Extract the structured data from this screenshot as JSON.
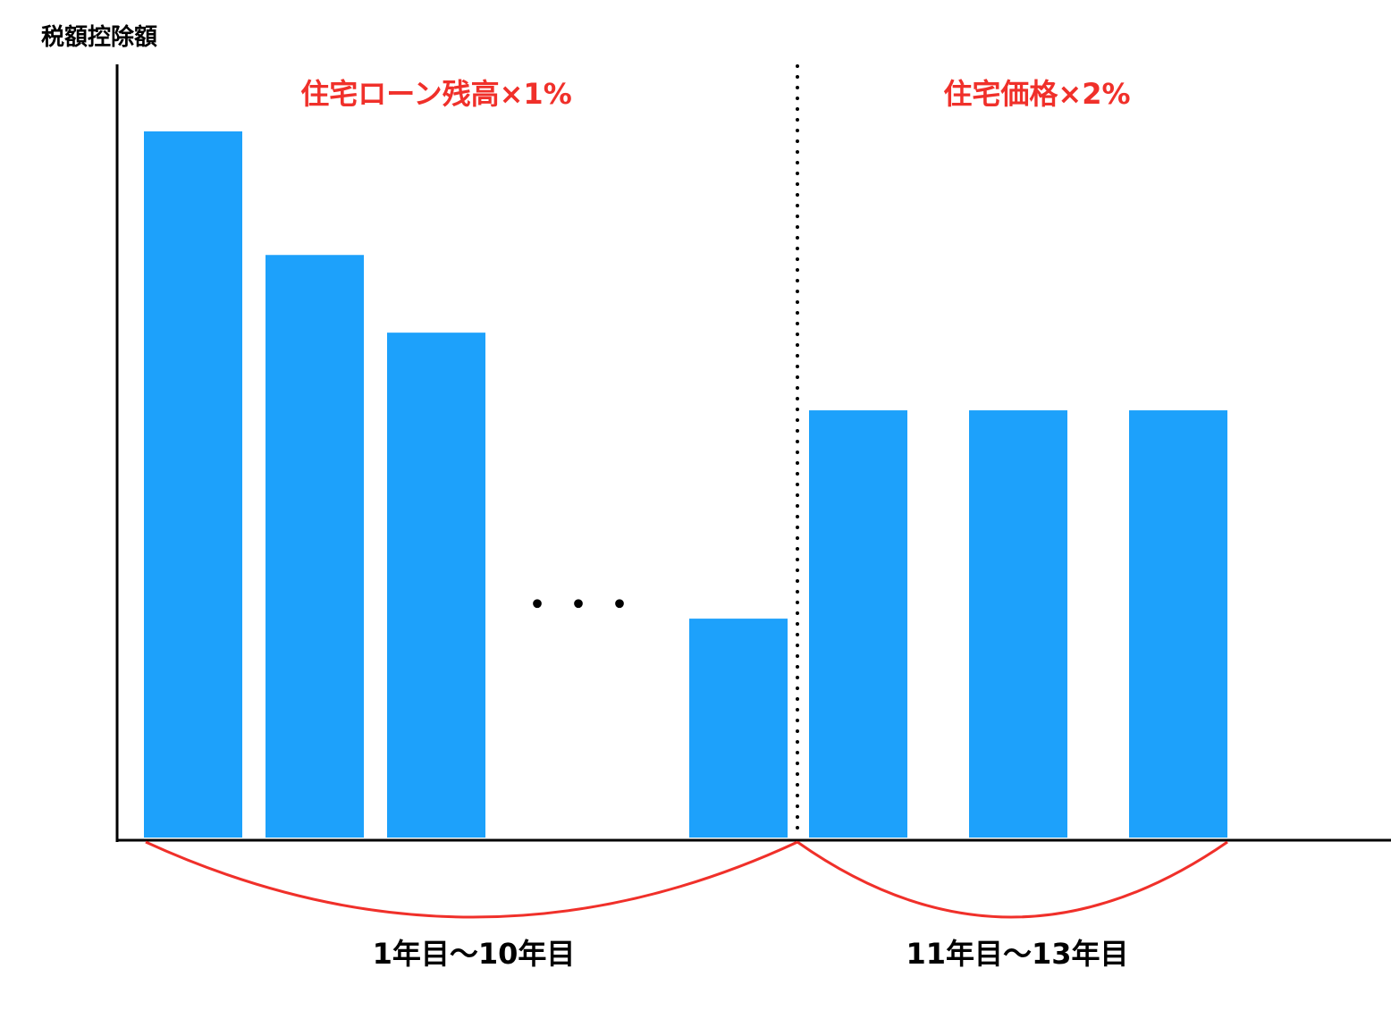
{
  "chart_data": {
    "type": "bar",
    "ylabel": "税額控除額",
    "bar_color": "#1da1fb",
    "accent_color": "#f0302a",
    "grid": false,
    "ylim": [
      0,
      100
    ],
    "bars": [
      {
        "value": 100,
        "group": 0
      },
      {
        "value": 82.5,
        "group": 0
      },
      {
        "value": 71.5,
        "group": 0
      },
      {
        "value": 31,
        "group": 0
      },
      {
        "value": 60.5,
        "group": 1
      },
      {
        "value": 60.5,
        "group": 1
      },
      {
        "value": 60.5,
        "group": 1
      }
    ],
    "ellipsis": "・・・",
    "regions": [
      {
        "label": "住宅ローン残高×1%",
        "period": "1年目〜10年目"
      },
      {
        "label": "住宅価格×2%",
        "period": "11年目〜13年目"
      }
    ]
  }
}
